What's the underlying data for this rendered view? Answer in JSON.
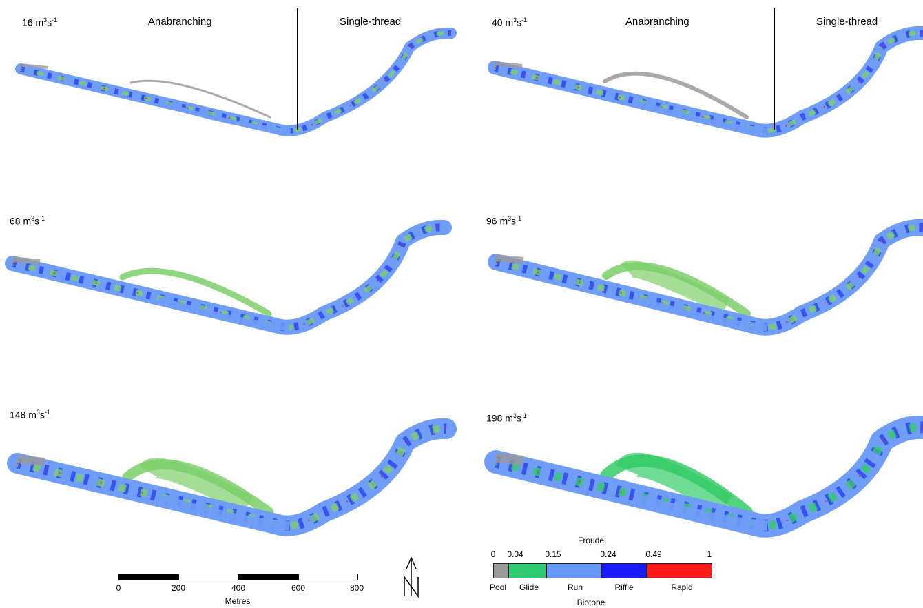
{
  "panels": [
    {
      "flow": "16 m",
      "unit_sup": "3",
      "unit_mid": "s",
      "unit_sup2": "-1",
      "show_regions": true,
      "level": 0
    },
    {
      "flow": "40 m",
      "unit_sup": "3",
      "unit_mid": "s",
      "unit_sup2": "-1",
      "show_regions": true,
      "level": 1
    },
    {
      "flow": "68 m",
      "unit_sup": "3",
      "unit_mid": "s",
      "unit_sup2": "-1",
      "show_regions": false,
      "level": 2
    },
    {
      "flow": "96 m",
      "unit_sup": "3",
      "unit_mid": "s",
      "unit_sup2": "-1",
      "show_regions": false,
      "level": 3
    },
    {
      "flow": "148 m",
      "unit_sup": "3",
      "unit_mid": "s",
      "unit_sup2": "-1",
      "show_regions": false,
      "level": 4
    },
    {
      "flow": "198 m",
      "unit_sup": "3",
      "unit_mid": "s",
      "unit_sup2": "-1",
      "show_regions": false,
      "level": 5
    }
  ],
  "regions": {
    "anabranching": "Anabranching",
    "single_thread": "Single-thread"
  },
  "scale": {
    "ticks": [
      "0",
      "200",
      "400",
      "600",
      "800"
    ],
    "unit": "Metres"
  },
  "north_symbol": "north-arrow-icon",
  "legend": {
    "title": "Froude",
    "axis_label": "Biotope",
    "thresholds": [
      "0",
      "0.04",
      "0.15",
      "0.24",
      "0.49",
      "1"
    ],
    "categories": [
      {
        "name": "Pool",
        "color": "#9a9a9a"
      },
      {
        "name": "Glide",
        "color": "#2ecc71"
      },
      {
        "name": "Run",
        "color": "#6699ff"
      },
      {
        "name": "Riffle",
        "color": "#1a1aff"
      },
      {
        "name": "Rapid",
        "color": "#ff1a1a"
      }
    ]
  },
  "colors": {
    "pool": "#9a9a9a",
    "glide": "#7ccf6a",
    "glide_bright": "#33cc66",
    "run": "#6f9df7",
    "riffle": "#2233ee",
    "rapid": "#ee2222"
  }
}
